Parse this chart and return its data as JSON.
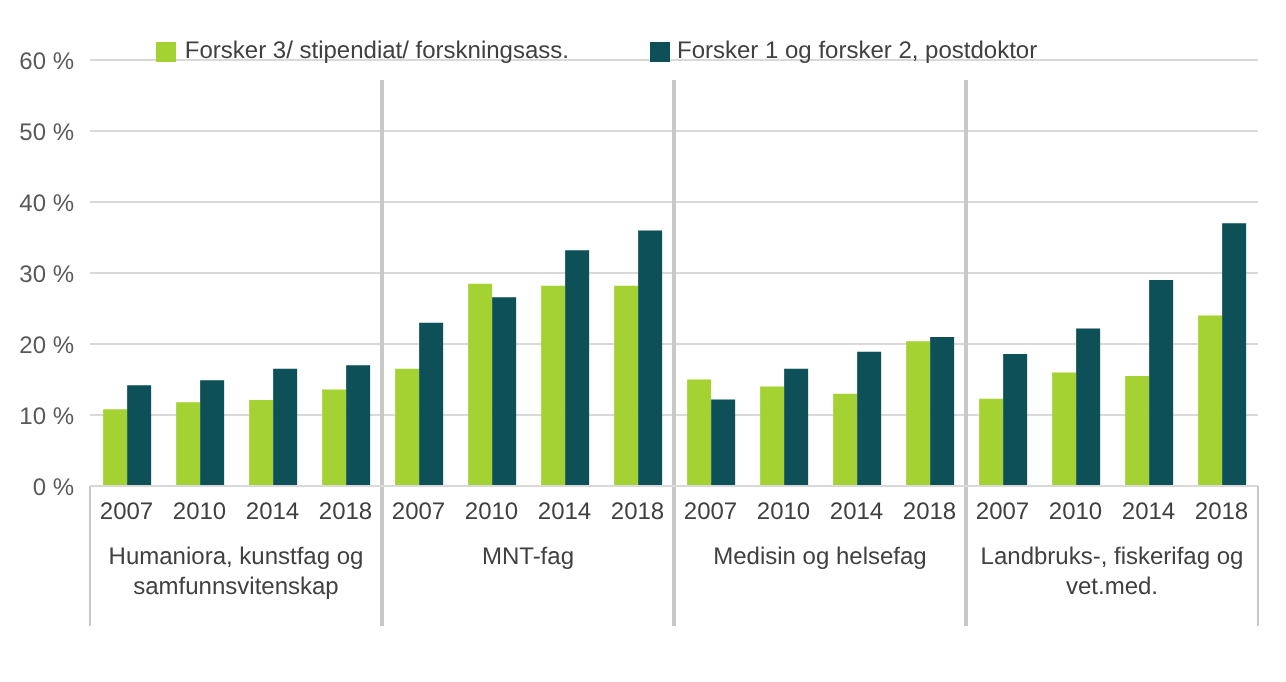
{
  "chart_data": {
    "type": "bar",
    "categories": [
      "2007",
      "2010",
      "2014",
      "2018",
      "2007",
      "2010",
      "2014",
      "2018",
      "2007",
      "2010",
      "2014",
      "2018",
      "2007",
      "2010",
      "2014",
      "2018"
    ],
    "series": [
      {
        "name": "Forsker 3/ stipendiat/ forskningsass.",
        "color": "#a4d233",
        "values": [
          10.8,
          11.8,
          12.1,
          13.6,
          16.5,
          28.5,
          28.2,
          28.2,
          15.0,
          14.0,
          13.0,
          20.4,
          12.3,
          16.0,
          15.5,
          24.0
        ]
      },
      {
        "name": "Forsker 1 og forsker 2, postdoktor",
        "color": "#0d5058",
        "values": [
          14.2,
          14.9,
          16.5,
          17.0,
          23.0,
          26.6,
          33.2,
          36.0,
          12.2,
          16.5,
          18.9,
          21.0,
          18.6,
          22.2,
          29.0,
          37.0
        ]
      }
    ],
    "annotations": [
      "Humaniora, kunstfag og samfunnsvitenskap",
      "MNT-fag",
      "Medisin og helsefag",
      "Landbruks-, fiskerifag og vet.med."
    ],
    "ylim": [
      0,
      60
    ],
    "yticks": [
      {
        "value": 0,
        "label": "0 %"
      },
      {
        "value": 10,
        "label": "10 %"
      },
      {
        "value": 20,
        "label": "20 %"
      },
      {
        "value": 30,
        "label": "30 %"
      },
      {
        "value": 40,
        "label": "40 %"
      },
      {
        "value": 50,
        "label": "50 %"
      },
      {
        "value": 60,
        "label": "60 %"
      }
    ],
    "grid": "y",
    "legend": "top"
  }
}
